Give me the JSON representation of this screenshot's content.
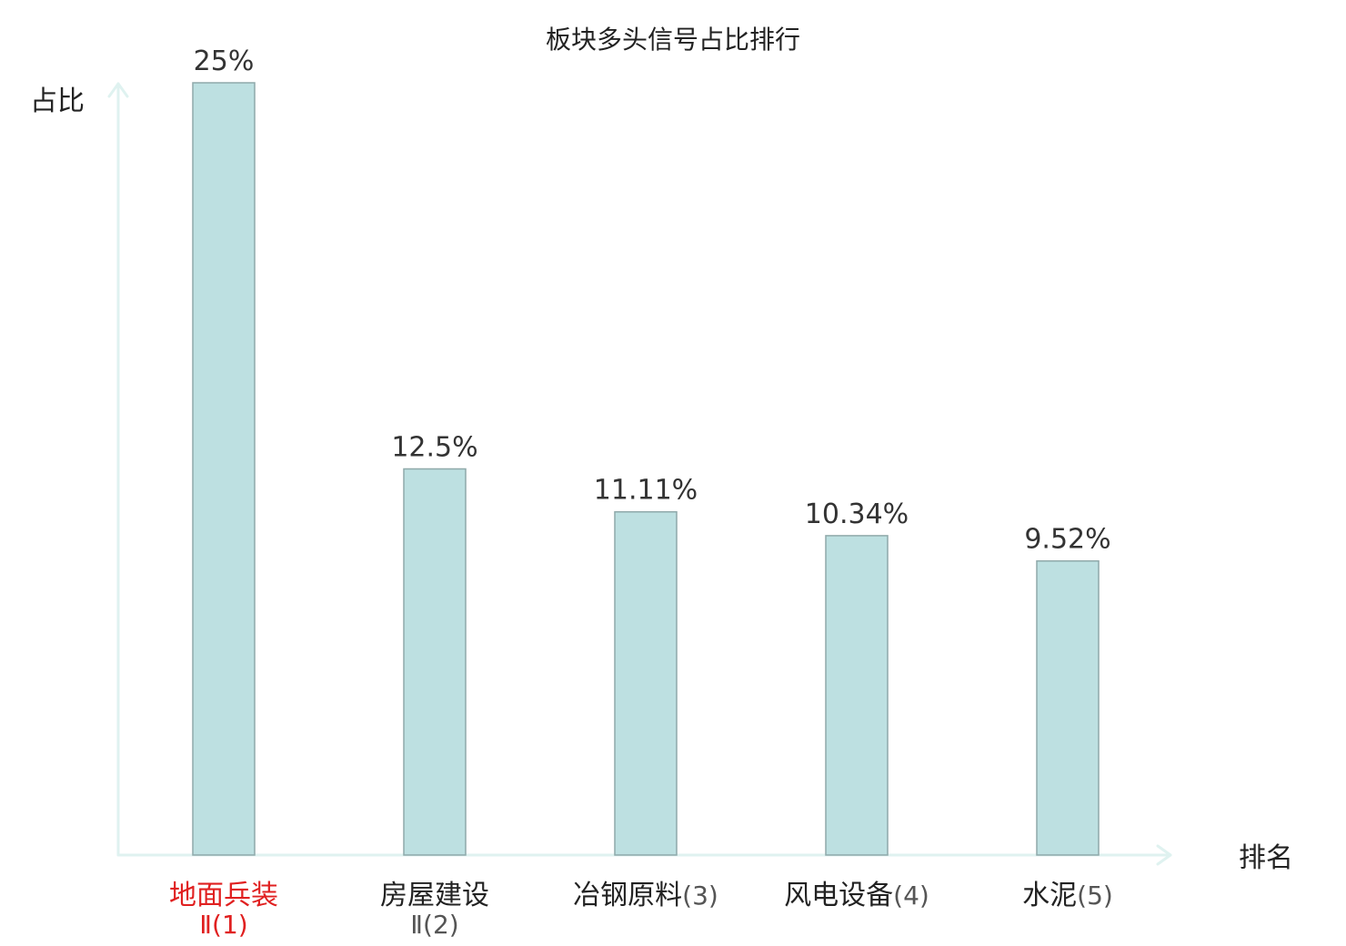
{
  "chart_data": {
    "type": "bar",
    "title": "板块多头信号占比排行",
    "ylabel": "占比",
    "xlabel": "排名",
    "categories": [
      {
        "name": "地面兵装",
        "suffix": "Ⅱ",
        "rank": "(1)",
        "highlight": true
      },
      {
        "name": "房屋建设",
        "suffix": "Ⅱ",
        "rank": "(2)",
        "highlight": false
      },
      {
        "name": "冶钢原料",
        "suffix": "",
        "rank": "(3)",
        "highlight": false
      },
      {
        "name": "风电设备",
        "suffix": "",
        "rank": "(4)",
        "highlight": false
      },
      {
        "name": "水泥",
        "suffix": "",
        "rank": "(5)",
        "highlight": false
      }
    ],
    "values": [
      25,
      12.5,
      11.11,
      10.34,
      9.52
    ],
    "value_labels": [
      "25%",
      "12.5%",
      "11.11%",
      "10.34%",
      "9.52%"
    ],
    "ylim": [
      0,
      25
    ],
    "grid": false,
    "colors": {
      "bar_fill": "#bde0e1",
      "bar_stroke": "#8fa9aa",
      "axis": "#dff2f0",
      "text": "#333333",
      "highlight": "#e02020"
    }
  }
}
